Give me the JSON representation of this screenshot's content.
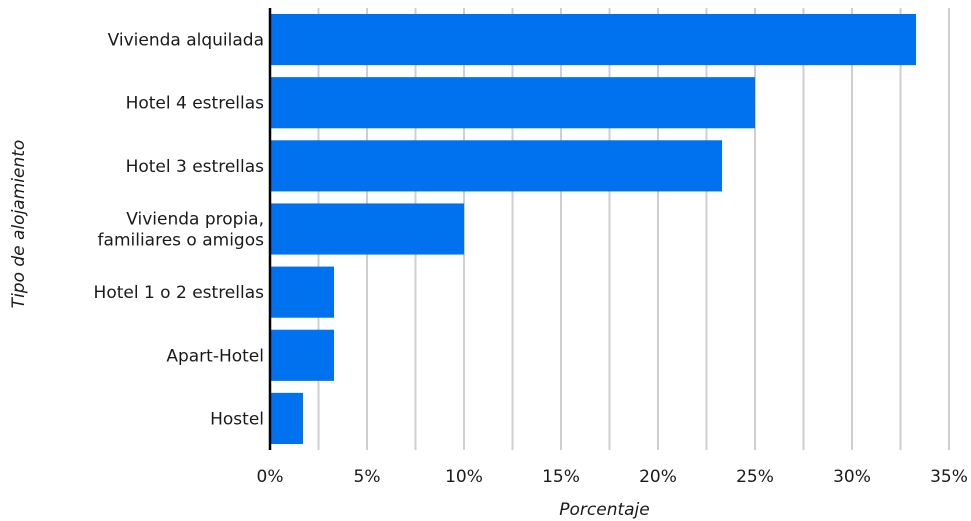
{
  "chart_data": {
    "type": "bar",
    "orientation": "horizontal",
    "title": "",
    "xlabel": "Porcentaje",
    "ylabel": "Tipo de alojamiento",
    "categories": [
      "Vivienda alquilada",
      "Hotel 4 estrellas",
      "Hotel 3 estrellas",
      "Vivienda propia,\nfamiliares o amigos",
      "Hotel 1 o 2 estrellas",
      "Apart-Hotel",
      "Hostel"
    ],
    "values": [
      33.3,
      25.0,
      23.3,
      10.0,
      3.3,
      3.3,
      1.7
    ],
    "xlim": [
      0,
      35
    ],
    "xticks": [
      0,
      5,
      10,
      15,
      20,
      25,
      30,
      35
    ],
    "xtick_labels": [
      "0%",
      "5%",
      "10%",
      "15%",
      "20%",
      "25%",
      "30%",
      "35%"
    ],
    "grid": "vertical",
    "legend": "none",
    "colors": {
      "bar": "#0072f0",
      "grid": "#cfcfcf",
      "axis": "#000000"
    }
  }
}
